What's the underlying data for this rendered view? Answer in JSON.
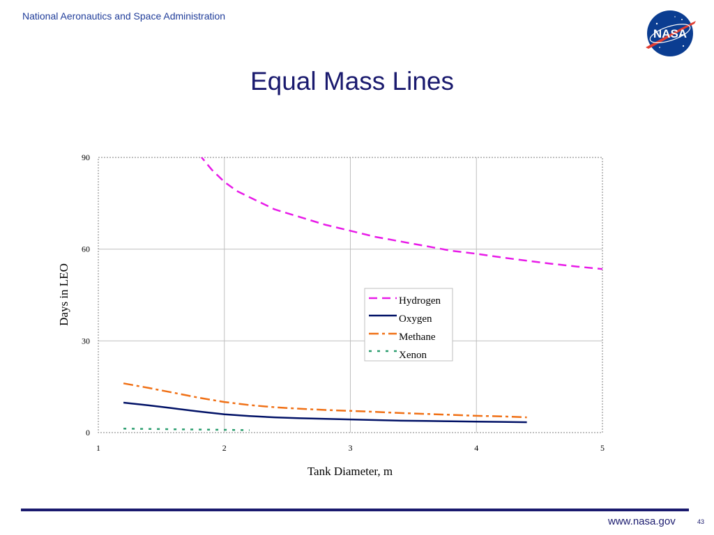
{
  "header": {
    "org_name": "National Aeronautics and Space Administration",
    "logo_text": "NASA",
    "logo_icon": "nasa-meatball-logo"
  },
  "slide": {
    "title": "Equal Mass Lines"
  },
  "footer": {
    "url": "www.nasa.gov",
    "page_number": "43"
  },
  "colors": {
    "title": "#1a1a6e",
    "org_name": "#1f3c99",
    "hydrogen": "#e81be8",
    "oxygen": "#001166",
    "methane": "#f07015",
    "xenon": "#2a9d6e",
    "grid": "#bfbfbf"
  },
  "chart_data": {
    "type": "line",
    "title": "",
    "xlabel": "Tank Diameter, m",
    "ylabel": "Days in LEO",
    "xlim": [
      1,
      5
    ],
    "ylim": [
      0,
      90
    ],
    "x_ticks": [
      "1",
      "2",
      "3",
      "4",
      "5"
    ],
    "y_ticks": [
      "0",
      "30",
      "60",
      "90"
    ],
    "grid": true,
    "legend_position": "center-right",
    "series": [
      {
        "name": "Hydrogen",
        "style": "long-dash",
        "color": "#e81be8",
        "x": [
          1.8,
          1.9,
          2.0,
          2.1,
          2.2,
          2.4,
          2.6,
          2.8,
          3.0,
          3.2,
          3.4,
          3.6,
          3.8,
          4.0,
          4.2,
          4.4,
          4.6,
          4.8,
          5.0
        ],
        "y": [
          91,
          86,
          82,
          79,
          77,
          73,
          70.5,
          68,
          66,
          64,
          62.5,
          61,
          59.5,
          58.5,
          57.3,
          56.2,
          55.2,
          54.3,
          53.5
        ]
      },
      {
        "name": "Oxygen",
        "style": "solid",
        "color": "#001166",
        "x": [
          1.2,
          1.4,
          1.6,
          1.8,
          2.0,
          2.2,
          2.4,
          2.6,
          2.8,
          3.0,
          3.2,
          3.4,
          3.6,
          3.8,
          4.0,
          4.2,
          4.4
        ],
        "y": [
          9.8,
          8.9,
          7.9,
          6.9,
          6.0,
          5.4,
          5.0,
          4.7,
          4.5,
          4.3,
          4.1,
          3.9,
          3.8,
          3.7,
          3.6,
          3.5,
          3.4
        ]
      },
      {
        "name": "Methane",
        "style": "dash-dot",
        "color": "#f07015",
        "x": [
          1.2,
          1.4,
          1.6,
          1.8,
          2.0,
          2.2,
          2.4,
          2.6,
          2.8,
          3.0,
          3.2,
          3.4,
          3.6,
          3.8,
          4.0,
          4.2,
          4.4
        ],
        "y": [
          16.1,
          14.6,
          13.0,
          11.4,
          10.0,
          9.0,
          8.3,
          7.8,
          7.4,
          7.1,
          6.8,
          6.4,
          6.1,
          5.8,
          5.5,
          5.3,
          5.0
        ]
      },
      {
        "name": "Xenon",
        "style": "dotted",
        "color": "#2a9d6e",
        "x": [
          1.2,
          1.4,
          1.6,
          1.8,
          2.0,
          2.2
        ],
        "y": [
          1.3,
          1.2,
          1.1,
          1.0,
          0.9,
          0.8
        ]
      }
    ]
  }
}
